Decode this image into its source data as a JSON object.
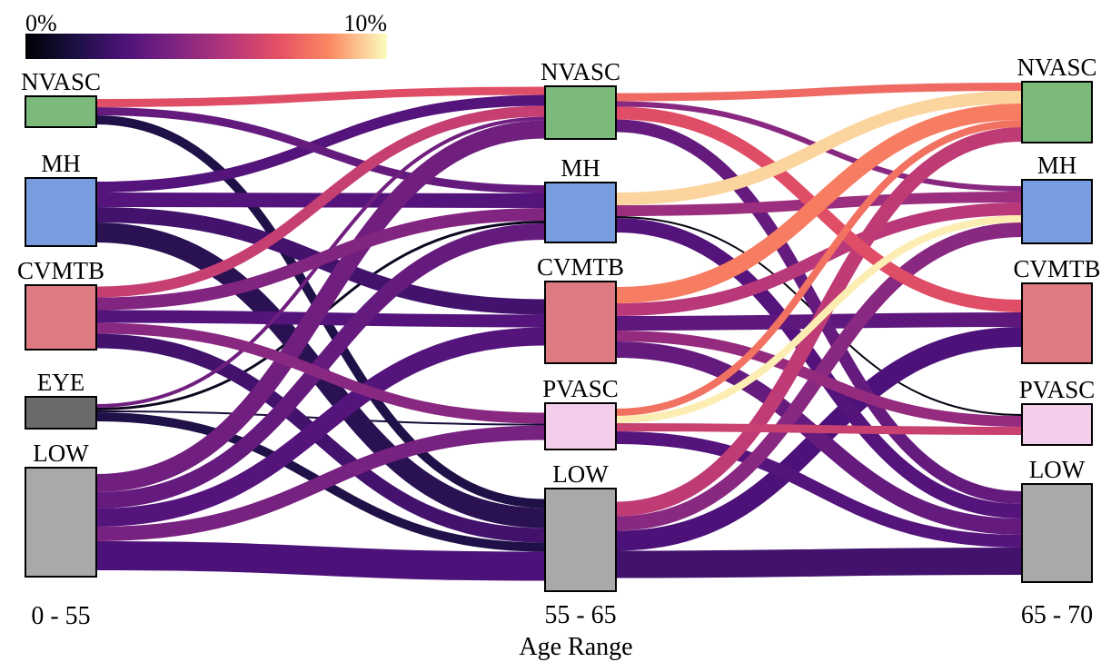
{
  "colorbar": {
    "min_label": "0%",
    "max_label": "10%",
    "colormap": "magma"
  },
  "xlabel": "Age Range",
  "stages": [
    {
      "label": "0 - 55",
      "nodes": [
        "NVASC",
        "MH",
        "CVMTB",
        "EYE",
        "LOW"
      ]
    },
    {
      "label": "55 - 65",
      "nodes": [
        "NVASC",
        "MH",
        "CVMTB",
        "PVASC",
        "LOW"
      ]
    },
    {
      "label": "65 - 70",
      "nodes": [
        "NVASC",
        "MH",
        "CVMTB",
        "PVASC",
        "LOW"
      ]
    }
  ],
  "node_colors": {
    "NVASC": "#7bba7a",
    "MH": "#789ce0",
    "CVMTB": "#de7a82",
    "EYE": "#6b6b6b",
    "PVASC": "#f3cdea",
    "LOW": "#a9a9a9"
  },
  "chart_data": {
    "type": "sankey",
    "value_unit": "percent",
    "xlabel": "Age Range",
    "color_range": [
      0,
      10
    ],
    "stage_labels": [
      "0 - 55",
      "55 - 65",
      "65 - 70"
    ],
    "links": [
      {
        "stage": 0,
        "source": "NVASC",
        "target": "NVASC",
        "width": 9,
        "pct": 7.0
      },
      {
        "stage": 0,
        "source": "NVASC",
        "target": "MH",
        "width": 9,
        "pct": 3.5
      },
      {
        "stage": 0,
        "source": "NVASC",
        "target": "LOW",
        "width": 10,
        "pct": 1.5
      },
      {
        "stage": 0,
        "source": "MH",
        "target": "NVASC",
        "width": 12,
        "pct": 3.0
      },
      {
        "stage": 0,
        "source": "MH",
        "target": "MH",
        "width": 16,
        "pct": 3.0
      },
      {
        "stage": 0,
        "source": "MH",
        "target": "CVMTB",
        "width": 17,
        "pct": 2.5
      },
      {
        "stage": 0,
        "source": "MH",
        "target": "LOW",
        "width": 22,
        "pct": 1.8
      },
      {
        "stage": 0,
        "source": "CVMTB",
        "target": "NVASC",
        "width": 12,
        "pct": 6.2
      },
      {
        "stage": 0,
        "source": "CVMTB",
        "target": "MH",
        "width": 14,
        "pct": 4.3
      },
      {
        "stage": 0,
        "source": "CVMTB",
        "target": "CVMTB",
        "width": 14,
        "pct": 3.0
      },
      {
        "stage": 0,
        "source": "CVMTB",
        "target": "PVASC",
        "width": 12,
        "pct": 4.5
      },
      {
        "stage": 0,
        "source": "CVMTB",
        "target": "LOW",
        "width": 16,
        "pct": 2.5
      },
      {
        "stage": 0,
        "source": "EYE",
        "target": "NVASC",
        "width": 4,
        "pct": 3.8
      },
      {
        "stage": 0,
        "source": "EYE",
        "target": "MH",
        "width": 3,
        "pct": 0.6
      },
      {
        "stage": 0,
        "source": "EYE",
        "target": "PVASC",
        "width": 2,
        "pct": 1.2
      },
      {
        "stage": 0,
        "source": "EYE",
        "target": "LOW",
        "width": 10,
        "pct": 1.5
      },
      {
        "stage": 0,
        "source": "LOW",
        "target": "NVASC",
        "width": 20,
        "pct": 3.8
      },
      {
        "stage": 0,
        "source": "LOW",
        "target": "MH",
        "width": 18,
        "pct": 3.5
      },
      {
        "stage": 0,
        "source": "LOW",
        "target": "CVMTB",
        "width": 20,
        "pct": 3.0
      },
      {
        "stage": 0,
        "source": "LOW",
        "target": "PVASC",
        "width": 16,
        "pct": 4.0
      },
      {
        "stage": 0,
        "source": "LOW",
        "target": "LOW",
        "width": 32,
        "pct": 2.8
      },
      {
        "stage": 1,
        "source": "NVASC",
        "target": "NVASC",
        "width": 9,
        "pct": 7.8
      },
      {
        "stage": 1,
        "source": "NVASC",
        "target": "MH",
        "width": 6,
        "pct": 4.5
      },
      {
        "stage": 1,
        "source": "NVASC",
        "target": "CVMTB",
        "width": 14,
        "pct": 7.0
      },
      {
        "stage": 1,
        "source": "NVASC",
        "target": "LOW",
        "width": 14,
        "pct": 3.5
      },
      {
        "stage": 1,
        "source": "MH",
        "target": "NVASC",
        "width": 14,
        "pct": 9.5
      },
      {
        "stage": 1,
        "source": "MH",
        "target": "MH",
        "width": 12,
        "pct": 5.0
      },
      {
        "stage": 1,
        "source": "MH",
        "target": "PVASC",
        "width": 2,
        "pct": 0.3
      },
      {
        "stage": 1,
        "source": "MH",
        "target": "LOW",
        "width": 16,
        "pct": 3.0
      },
      {
        "stage": 1,
        "source": "CVMTB",
        "target": "NVASC",
        "width": 18,
        "pct": 8.3
      },
      {
        "stage": 1,
        "source": "CVMTB",
        "target": "MH",
        "width": 14,
        "pct": 5.8
      },
      {
        "stage": 1,
        "source": "CVMTB",
        "target": "CVMTB",
        "width": 16,
        "pct": 3.3
      },
      {
        "stage": 1,
        "source": "CVMTB",
        "target": "PVASC",
        "width": 12,
        "pct": 4.8
      },
      {
        "stage": 1,
        "source": "CVMTB",
        "target": "LOW",
        "width": 18,
        "pct": 3.5
      },
      {
        "stage": 1,
        "source": "PVASC",
        "target": "NVASC",
        "width": 8,
        "pct": 8.0
      },
      {
        "stage": 1,
        "source": "PVASC",
        "target": "MH",
        "width": 8,
        "pct": 9.8
      },
      {
        "stage": 1,
        "source": "PVASC",
        "target": "PVASC",
        "width": 9,
        "pct": 6.3
      },
      {
        "stage": 1,
        "source": "PVASC",
        "target": "LOW",
        "width": 14,
        "pct": 3.0
      },
      {
        "stage": 1,
        "source": "LOW",
        "target": "NVASC",
        "width": 16,
        "pct": 6.0
      },
      {
        "stage": 1,
        "source": "LOW",
        "target": "MH",
        "width": 16,
        "pct": 4.5
      },
      {
        "stage": 1,
        "source": "LOW",
        "target": "CVMTB",
        "width": 22,
        "pct": 2.8
      },
      {
        "stage": 1,
        "source": "LOW",
        "target": "LOW",
        "width": 30,
        "pct": 2.5
      }
    ]
  }
}
